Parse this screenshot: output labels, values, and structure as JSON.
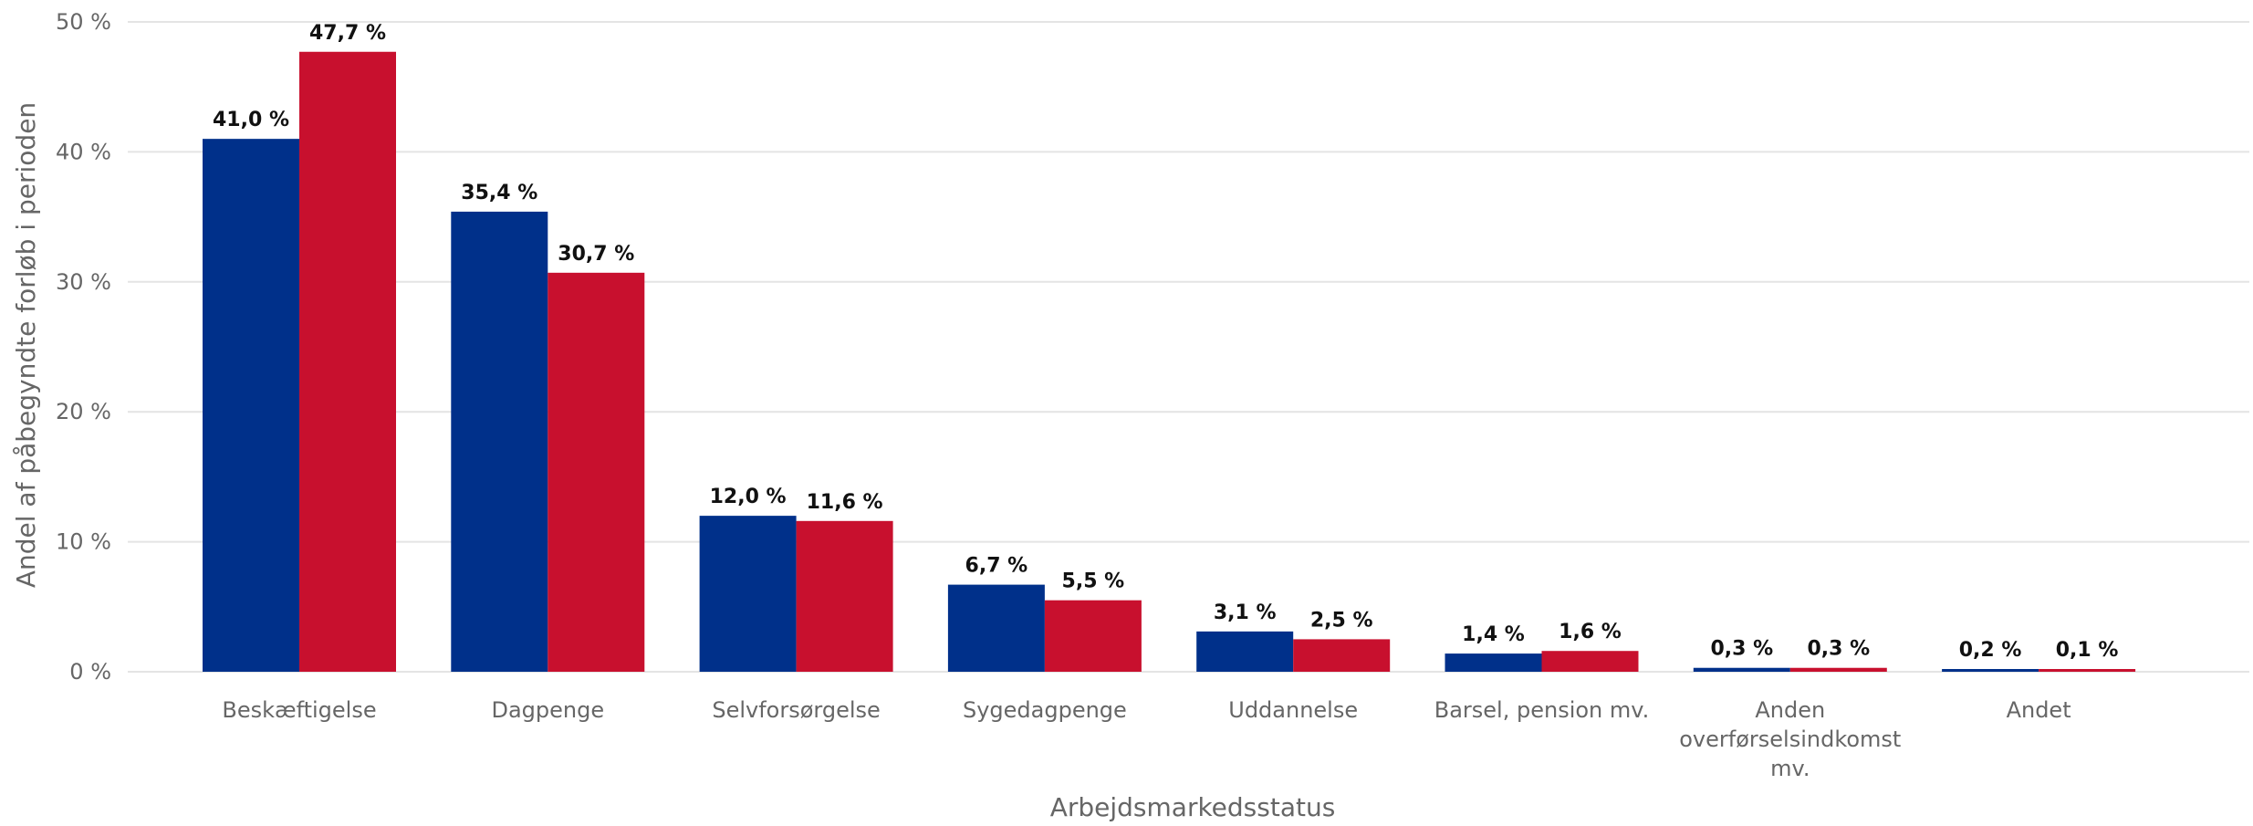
{
  "chart_data": {
    "type": "bar",
    "xlabel": "Arbejdsmarkedsstatus",
    "ylabel": "Andel af påbegyndte forløb i perioden",
    "ylim": [
      0,
      50
    ],
    "yticks": [
      0,
      10,
      20,
      30,
      40,
      50
    ],
    "ytick_labels": [
      "0 %",
      "10 %",
      "20 %",
      "30 %",
      "40 %",
      "50 %"
    ],
    "grid": true,
    "categories": [
      [
        "Beskæftigelse"
      ],
      [
        "Dagpenge"
      ],
      [
        "Selvforsørgelse"
      ],
      [
        "Sygedagpenge"
      ],
      [
        "Uddannelse"
      ],
      [
        "Barsel, pension mv."
      ],
      [
        "Anden",
        "overførselsindkomst",
        "mv."
      ],
      [
        "Andet"
      ]
    ],
    "series": [
      {
        "color": "#00308a",
        "values": [
          41.0,
          35.4,
          12.0,
          6.7,
          3.1,
          1.4,
          0.3,
          0.2
        ],
        "labels": [
          "41,0 %",
          "35,4 %",
          "12,0 %",
          "6,7 %",
          "3,1 %",
          "1,4 %",
          "0,3 %",
          "0,2 %"
        ]
      },
      {
        "color": "#c8102e",
        "values": [
          47.7,
          30.7,
          11.6,
          5.5,
          2.5,
          1.6,
          0.3,
          0.1
        ],
        "labels": [
          "47,7 %",
          "30,7 %",
          "11,6 %",
          "5,5 %",
          "2,5 %",
          "1,6 %",
          "0,3 %",
          "0,1 %"
        ]
      }
    ]
  }
}
